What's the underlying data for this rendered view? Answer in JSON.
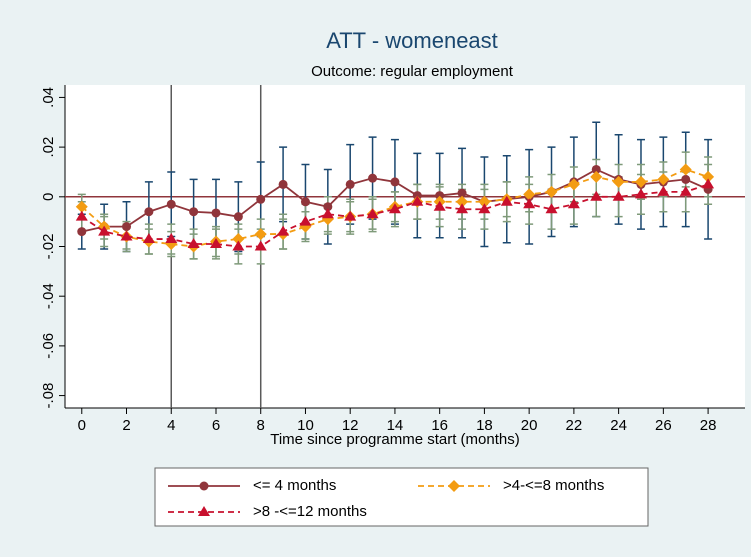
{
  "chart_data": {
    "type": "line",
    "title": "ATT - womeneast",
    "subtitle": "Outcome: regular employment",
    "x_label": "Time since programme start (months)",
    "x": [
      0,
      1,
      2,
      3,
      4,
      5,
      6,
      7,
      8,
      9,
      10,
      11,
      12,
      13,
      14,
      15,
      16,
      17,
      18,
      19,
      20,
      21,
      22,
      23,
      24,
      25,
      26,
      27,
      28
    ],
    "xlim": [
      -0.75,
      29.65
    ],
    "xticks": [
      0,
      2,
      4,
      6,
      8,
      10,
      12,
      14,
      16,
      18,
      20,
      22,
      24,
      26,
      28
    ],
    "ylim": [
      -0.085,
      0.045
    ],
    "yticks": [
      {
        "value": 0.04,
        "label": ".04"
      },
      {
        "value": 0.02,
        "label": ".02"
      },
      0,
      {
        "value": -0.02,
        "label": "-.02"
      },
      {
        "value": -0.04,
        "label": "-.04"
      },
      {
        "value": -0.06,
        "label": "-.06"
      },
      {
        "value": -0.08,
        "label": "-.08"
      }
    ],
    "xlines": [
      4,
      8
    ],
    "xline_color": "#5a5a5a",
    "yline": 0,
    "yline_color": "#90353b",
    "series": [
      {
        "name": "<= 4 months",
        "color": "#90353b",
        "marker": "circle",
        "dashed": false,
        "error_color": "#1a476f",
        "values": [
          -0.014,
          -0.012,
          -0.012,
          -0.006,
          -0.003,
          -0.006,
          -0.0065,
          -0.008,
          -0.001,
          0.005,
          -0.002,
          -0.004,
          0.005,
          0.0075,
          0.006,
          0.0005,
          0.0005,
          0.0015,
          -0.002,
          -0.001,
          0,
          0.002,
          0.006,
          0.011,
          0.007,
          0.005,
          0.006,
          0.007,
          0.003
        ],
        "errors": [
          0.007,
          0.009,
          0.01,
          0.012,
          0.013,
          0.013,
          0.0135,
          0.014,
          0.015,
          0.015,
          0.015,
          0.015,
          0.016,
          0.0165,
          0.017,
          0.017,
          0.017,
          0.018,
          0.018,
          0.0175,
          0.019,
          0.018,
          0.018,
          0.019,
          0.018,
          0.018,
          0.018,
          0.019,
          0.02
        ]
      },
      {
        "name": ">4-<=8 months",
        "color": "#f39c12",
        "marker": "diamond",
        "dashed": true,
        "error_color": "#7f9a7a",
        "values": [
          -0.004,
          -0.012,
          -0.016,
          -0.018,
          -0.019,
          -0.02,
          -0.018,
          -0.017,
          -0.015,
          -0.015,
          -0.012,
          -0.009,
          -0.008,
          -0.007,
          -0.004,
          -0.002,
          -0.002,
          -0.002,
          -0.002,
          -0.001,
          0.001,
          0.002,
          0.005,
          0.008,
          0.006,
          0.006,
          0.007,
          0.011,
          0.008
        ],
        "errors": [
          0.005,
          0.005,
          0.005,
          0.005,
          0.005,
          0.005,
          0.006,
          0.006,
          0.006,
          0.006,
          0.006,
          0.006,
          0.006,
          0.006,
          0.006,
          0.007,
          0.007,
          0.007,
          0.007,
          0.007,
          0.007,
          0.007,
          0.007,
          0.007,
          0.007,
          0.007,
          0.007,
          0.007,
          0.008
        ]
      },
      {
        "name": ">8 -<=12 months",
        "color": "#c8102e",
        "marker": "triangle",
        "dashed": true,
        "error_color": "#7f9a7a",
        "values": [
          -0.008,
          -0.014,
          -0.016,
          -0.017,
          -0.017,
          -0.019,
          -0.019,
          -0.02,
          -0.02,
          -0.014,
          -0.01,
          -0.007,
          -0.008,
          -0.007,
          -0.005,
          -0.002,
          -0.004,
          -0.005,
          -0.005,
          -0.002,
          -0.003,
          -0.005,
          -0.003,
          0,
          0,
          0.001,
          0.002,
          0.002,
          0.005
        ],
        "errors": [
          0.006,
          0.006,
          0.006,
          0.006,
          0.006,
          0.006,
          0.006,
          0.007,
          0.007,
          0.007,
          0.007,
          0.007,
          0.007,
          0.007,
          0.007,
          0.007,
          0.008,
          0.008,
          0.008,
          0.008,
          0.008,
          0.008,
          0.008,
          0.008,
          0.008,
          0.008,
          0.008,
          0.008,
          0.008
        ]
      }
    ]
  }
}
